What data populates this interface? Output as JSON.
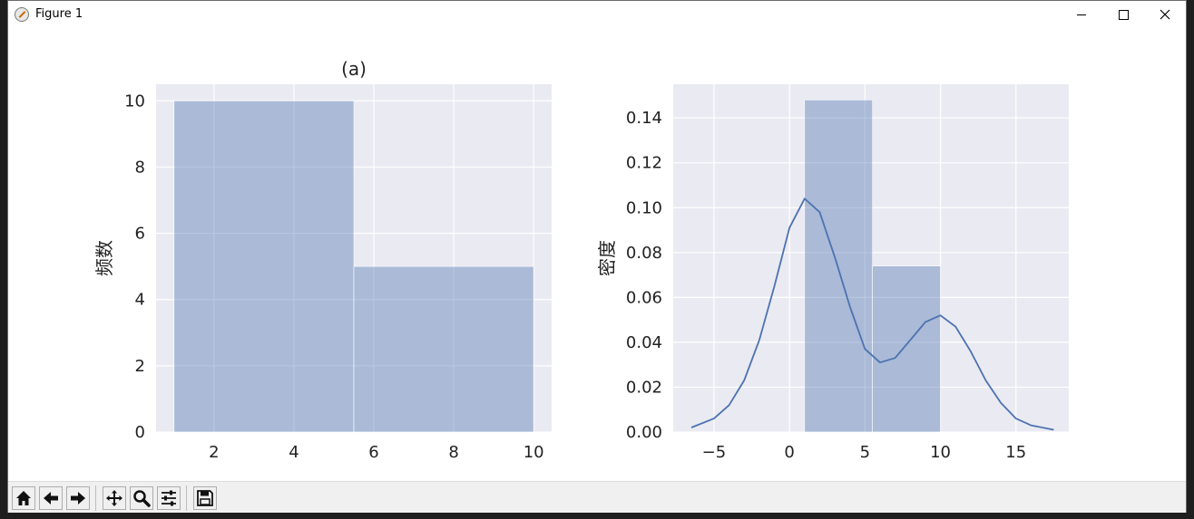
{
  "window": {
    "title": "Figure 1"
  },
  "toolbar": {
    "buttons": [
      "home-icon",
      "back-icon",
      "forward-icon",
      "pan-icon",
      "zoom-icon",
      "configure-icon",
      "save-icon"
    ]
  },
  "colors": {
    "plot_bg": "#eaeaf2",
    "bar": "#4c72b0",
    "kde": "#4c72b0"
  },
  "chart_data": [
    {
      "type": "bar",
      "title": "(a)",
      "xlabel": "",
      "ylabel": "频数",
      "bins": [
        [
          1,
          5.5
        ],
        [
          5.5,
          10
        ]
      ],
      "values": [
        10,
        5
      ],
      "xlim": [
        0.55,
        10.45
      ],
      "ylim": [
        0,
        10.5
      ],
      "xticks": [
        2,
        4,
        6,
        8,
        10
      ],
      "yticks": [
        0,
        2,
        4,
        6,
        8,
        10
      ],
      "grid": true
    },
    {
      "type": "bar",
      "title": "",
      "xlabel": "",
      "ylabel": "密度",
      "bins": [
        [
          1,
          5.5
        ],
        [
          5.5,
          10
        ]
      ],
      "values": [
        0.148,
        0.074
      ],
      "kde": {
        "x": [
          -6.5,
          -5,
          -4,
          -3,
          -2,
          -1,
          0,
          1,
          2,
          3,
          4,
          5,
          6,
          7,
          8,
          9,
          10,
          11,
          12,
          13,
          14,
          15,
          16,
          17.5
        ],
        "y": [
          0.002,
          0.006,
          0.012,
          0.023,
          0.041,
          0.065,
          0.091,
          0.104,
          0.098,
          0.078,
          0.056,
          0.037,
          0.031,
          0.033,
          0.041,
          0.049,
          0.052,
          0.047,
          0.036,
          0.023,
          0.013,
          0.006,
          0.003,
          0.001
        ]
      },
      "xlim": [
        -7.7,
        18.5
      ],
      "ylim": [
        0,
        0.155
      ],
      "xticks": [
        -5,
        0,
        5,
        10,
        15
      ],
      "xtick_labels": [
        "−5",
        "0",
        "5",
        "10",
        "15"
      ],
      "yticks": [
        0,
        0.02,
        0.04,
        0.06,
        0.08,
        0.1,
        0.12,
        0.14
      ],
      "ytick_labels": [
        "0.00",
        "0.02",
        "0.04",
        "0.06",
        "0.08",
        "0.10",
        "0.12",
        "0.14"
      ],
      "grid": true
    }
  ]
}
